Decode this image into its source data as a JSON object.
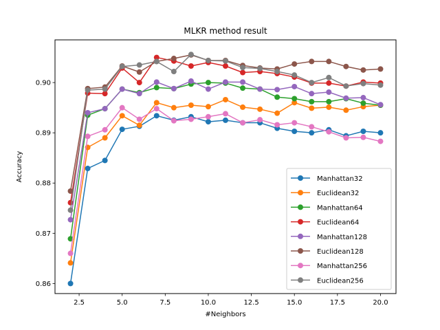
{
  "chart_data": {
    "type": "line",
    "title": "MLKR method result",
    "xlabel": "#Neighbors",
    "ylabel": "Accuracy",
    "xlim": [
      1.1,
      20.9
    ],
    "ylim": [
      0.858,
      0.9085
    ],
    "xticks": [
      2.5,
      5.0,
      7.5,
      10.0,
      12.5,
      15.0,
      17.5,
      20.0
    ],
    "xtick_labels": [
      "2.5",
      "5.0",
      "7.5",
      "10.0",
      "12.5",
      "15.0",
      "17.5",
      "20.0"
    ],
    "yticks": [
      0.86,
      0.87,
      0.88,
      0.89,
      0.9
    ],
    "ytick_labels": [
      "0.86",
      "0.87",
      "0.88",
      "0.89",
      "0.90"
    ],
    "legend_position": "lower-right",
    "x": [
      2,
      3,
      4,
      5,
      6,
      7,
      8,
      9,
      10,
      11,
      12,
      13,
      14,
      15,
      16,
      17,
      18,
      19,
      20
    ],
    "series": [
      {
        "name": "Manhattan32",
        "color": "#1f77b4",
        "values": [
          0.86,
          0.8829,
          0.8845,
          0.8907,
          0.8913,
          0.8934,
          0.8925,
          0.8932,
          0.8922,
          0.8925,
          0.892,
          0.892,
          0.8909,
          0.8903,
          0.89,
          0.8906,
          0.8894,
          0.8903,
          0.89
        ]
      },
      {
        "name": "Euclidean32",
        "color": "#ff7f0e",
        "values": [
          0.8641,
          0.8871,
          0.889,
          0.8934,
          0.8915,
          0.896,
          0.895,
          0.8955,
          0.8952,
          0.8966,
          0.8951,
          0.8947,
          0.8939,
          0.896,
          0.8949,
          0.8951,
          0.8945,
          0.8952,
          0.8955
        ]
      },
      {
        "name": "Manhattan64",
        "color": "#2ca02c",
        "values": [
          0.8689,
          0.8935,
          0.8948,
          0.8987,
          0.898,
          0.899,
          0.8988,
          0.8997,
          0.9,
          0.8999,
          0.8989,
          0.8987,
          0.8971,
          0.8968,
          0.8962,
          0.8962,
          0.8968,
          0.8959,
          0.8955
        ]
      },
      {
        "name": "Euclidean64",
        "color": "#d62728",
        "values": [
          0.8761,
          0.8979,
          0.8978,
          0.9029,
          0.9,
          0.905,
          0.9043,
          0.9033,
          0.904,
          0.9033,
          0.902,
          0.9022,
          0.9018,
          0.9011,
          0.8999,
          0.8999,
          0.8993,
          0.9001,
          0.8999
        ]
      },
      {
        "name": "Manhattan128",
        "color": "#9467bd",
        "values": [
          0.8727,
          0.894,
          0.8948,
          0.8987,
          0.8978,
          0.9001,
          0.8988,
          0.9003,
          0.8987,
          0.9001,
          0.9001,
          0.8987,
          0.8986,
          0.8992,
          0.8978,
          0.8981,
          0.8969,
          0.897,
          0.8956
        ]
      },
      {
        "name": "Euclidean128",
        "color": "#8c564b",
        "values": [
          0.8784,
          0.8988,
          0.8991,
          0.9033,
          0.9021,
          0.9042,
          0.9048,
          0.9055,
          0.9044,
          0.9044,
          0.9034,
          0.9029,
          0.9027,
          0.9037,
          0.9042,
          0.9042,
          0.9032,
          0.9025,
          0.9027
        ]
      },
      {
        "name": "Manhattan256",
        "color": "#e377c2",
        "values": [
          0.866,
          0.8893,
          0.8906,
          0.895,
          0.8927,
          0.8948,
          0.8924,
          0.8927,
          0.8932,
          0.8938,
          0.892,
          0.8926,
          0.8916,
          0.892,
          0.8912,
          0.8902,
          0.889,
          0.8891,
          0.8883
        ]
      },
      {
        "name": "Euclidean256",
        "color": "#7f7f7f",
        "values": [
          0.8746,
          0.8985,
          0.8987,
          0.9032,
          0.9035,
          0.9042,
          0.9022,
          0.9056,
          0.9044,
          0.9043,
          0.903,
          0.9028,
          0.9022,
          0.9015,
          0.9,
          0.901,
          0.8993,
          0.8998,
          0.8995
        ]
      }
    ]
  }
}
